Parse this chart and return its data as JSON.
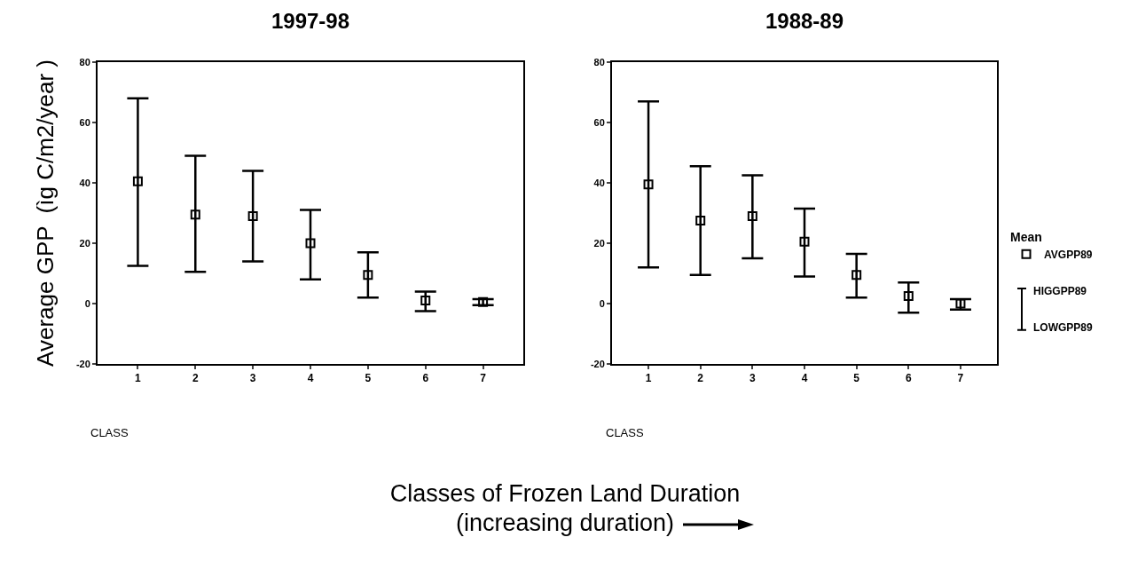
{
  "chart_data": [
    {
      "type": "scatter",
      "title": "1997-98",
      "xlabel": "CLASS",
      "ylabel": "Average GPP  (ìg C/m2/year )",
      "categories": [
        "1",
        "2",
        "3",
        "4",
        "5",
        "6",
        "7"
      ],
      "ylim": [
        -20,
        80
      ],
      "yticks": [
        -20,
        0,
        20,
        40,
        60,
        80
      ],
      "grid": false,
      "legend": false,
      "marker": "square",
      "color": "#000000",
      "values": [
        40.5,
        29.5,
        29,
        20,
        9.5,
        1,
        0.5
      ],
      "errors": [
        [
          12.5,
          68
        ],
        [
          10.5,
          49
        ],
        [
          14,
          44
        ],
        [
          8,
          31
        ],
        [
          2,
          17
        ],
        [
          -2.5,
          4
        ],
        [
          -0.5,
          1.5
        ]
      ],
      "annotations": [
        "Classes of Frozen Land Duration",
        "(increasing duration)"
      ]
    },
    {
      "type": "scatter",
      "title": "1988-89",
      "xlabel": "CLASS",
      "categories": [
        "1",
        "2",
        "3",
        "4",
        "5",
        "6",
        "7"
      ],
      "ylim": [
        -20,
        80
      ],
      "yticks": [
        -20,
        0,
        20,
        40,
        60,
        80
      ],
      "grid": false,
      "legend": "right",
      "legend_title": "Mean",
      "marker": "square",
      "series": [
        {
          "name": "AVGPP89",
          "color": "#000000",
          "values": [
            39.5,
            27.5,
            29,
            20.5,
            9.5,
            2.5,
            0
          ],
          "errors": [
            [
              12,
              67
            ],
            [
              9.5,
              45.5
            ],
            [
              15,
              42.5
            ],
            [
              9,
              31.5
            ],
            [
              2,
              16.5
            ],
            [
              -3,
              7
            ],
            [
              -2,
              1.5
            ]
          ]
        }
      ],
      "annotations": [
        "HIGGPP89",
        "LOWGPP89"
      ]
    }
  ]
}
